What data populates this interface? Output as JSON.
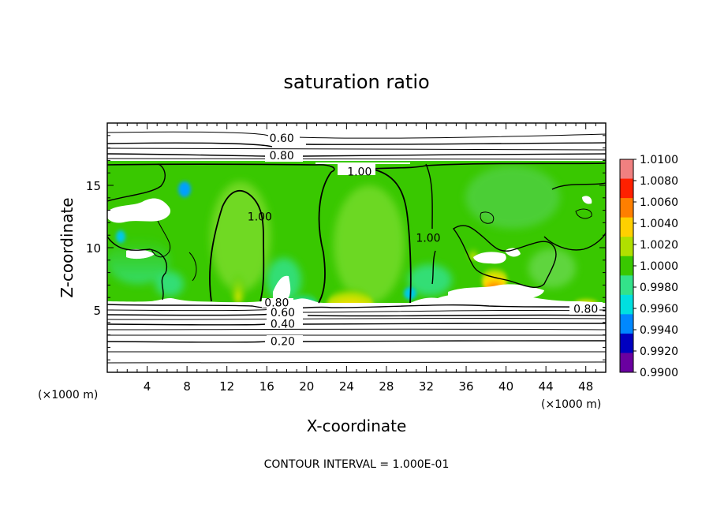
{
  "chart_data": {
    "type": "heatmap",
    "title": "saturation ratio",
    "xlabel": "X-coordinate",
    "ylabel": "Z-coordinate",
    "x_unit": "(×1000 m)",
    "z_unit": "(×1000 m)",
    "xlim": [
      0,
      50
    ],
    "ylim": [
      0,
      20
    ],
    "x_ticks": [
      "4",
      "8",
      "12",
      "16",
      "20",
      "24",
      "28",
      "32",
      "36",
      "40",
      "44",
      "48"
    ],
    "x_tick_values": [
      4,
      8,
      12,
      16,
      20,
      24,
      28,
      32,
      36,
      40,
      44,
      48
    ],
    "y_ticks": [
      "5",
      "10",
      "15"
    ],
    "y_tick_values": [
      5,
      10,
      15
    ],
    "colorbar": {
      "labels": [
        "1.0100",
        "1.0080",
        "1.0060",
        "1.0040",
        "1.0020",
        "1.0000",
        "0.9980",
        "0.9960",
        "0.9940",
        "0.9920",
        "0.9900"
      ],
      "values": [
        1.01,
        1.008,
        1.006,
        1.004,
        1.002,
        1.0,
        0.998,
        0.996,
        0.994,
        0.992,
        0.99
      ],
      "colors": [
        "#f08080",
        "#ff2000",
        "#ff7f00",
        "#ffd000",
        "#b0e000",
        "#39c800",
        "#33e28a",
        "#00e0e0",
        "#0088ff",
        "#0000c0",
        "#6a00a0"
      ]
    },
    "contour_labels": [
      {
        "text": "0.60",
        "x": 17.5,
        "z": 18.8
      },
      {
        "text": "0.80",
        "x": 17.5,
        "z": 17.4
      },
      {
        "text": "1.00",
        "x": 25.3,
        "z": 16.1
      },
      {
        "text": "1.00",
        "x": 15.3,
        "z": 12.5
      },
      {
        "text": "1.00",
        "x": 32.2,
        "z": 10.8
      },
      {
        "text": "0.80",
        "x": 17.0,
        "z": 5.6
      },
      {
        "text": "0.60",
        "x": 17.6,
        "z": 4.8
      },
      {
        "text": "0.40",
        "x": 17.6,
        "z": 3.9
      },
      {
        "text": "0.20",
        "x": 17.6,
        "z": 2.5
      },
      {
        "text": "0.80",
        "x": 48.0,
        "z": 5.1
      }
    ],
    "footer": "CONTOUR INTERVAL = 1.000E-01"
  }
}
